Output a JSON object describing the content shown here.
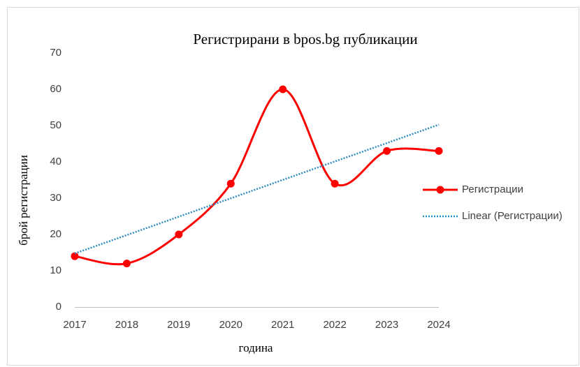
{
  "chart_data": {
    "type": "line",
    "title": "Регистрирани в bpos.bg публикации",
    "y_label": "брой регистрации",
    "x_label": "година",
    "categories": [
      "2017",
      "2018",
      "2019",
      "2020",
      "2021",
      "2022",
      "2023",
      "2024"
    ],
    "series": [
      {
        "name": "Регистрации",
        "color": "#ff0000",
        "style": "smooth",
        "values": [
          14,
          12,
          20,
          34,
          60,
          34,
          43,
          43
        ]
      },
      {
        "name": "Linear (Регистрации)",
        "color": "#2e8bc0",
        "style": "dotted",
        "values": [
          14.75,
          19.82,
          24.89,
          29.96,
          35.04,
          40.11,
          45.18,
          50.25
        ]
      }
    ],
    "ylim": [
      0,
      70
    ],
    "yticks": [
      0,
      10,
      20,
      30,
      40,
      50,
      60,
      70
    ],
    "grid": false,
    "legend": "right"
  }
}
